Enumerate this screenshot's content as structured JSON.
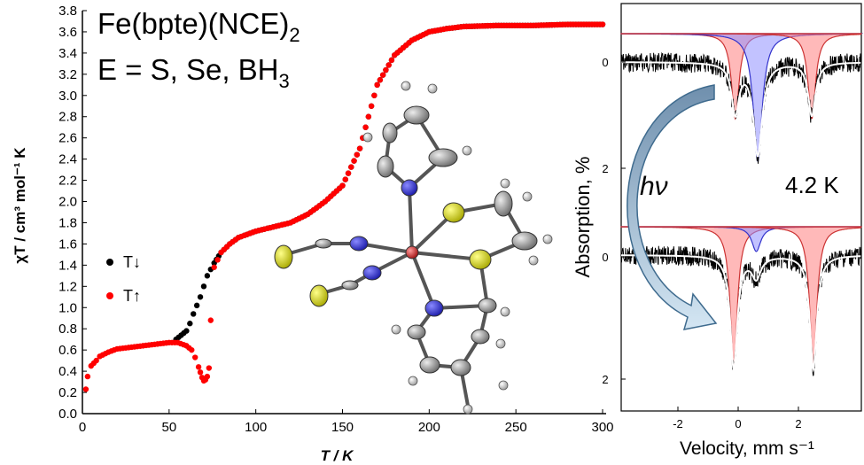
{
  "left_chart": {
    "formula_line1": "Fe(bpte)(NCE)",
    "formula_line1_sub": "2",
    "formula_line2": "E = S, Se, BH",
    "formula_line2_sub": "3",
    "ylabel": "χT / cm³ mol⁻¹ K",
    "xlabel": "T / K",
    "xticks": [
      "0",
      "50",
      "100",
      "150",
      "200",
      "250",
      "300"
    ],
    "yticks": [
      "0.0",
      "0.2",
      "0.4",
      "0.6",
      "0.8",
      "1.0",
      "1.2",
      "1.4",
      "1.6",
      "1.8",
      "2.0",
      "2.2",
      "2.4",
      "2.6",
      "2.8",
      "3.0",
      "3.2",
      "3.4",
      "3.6",
      "3.8"
    ],
    "legend": [
      "T↓",
      "T↑"
    ]
  },
  "chart_data": [
    {
      "type": "scatter",
      "xlabel": "T / K",
      "ylabel": "χT / cm³ mol⁻¹ K",
      "xlim": [
        0,
        300
      ],
      "ylim": [
        0.0,
        3.8
      ],
      "series": [
        {
          "name": "T↓",
          "color": "#000000",
          "x": [
            54,
            57,
            60,
            62,
            64,
            66,
            68,
            70,
            72,
            74,
            76,
            80,
            85,
            90,
            100,
            110,
            120,
            130,
            140,
            150,
            160,
            170,
            180,
            190,
            200,
            210,
            220,
            240,
            260,
            280,
            300
          ],
          "y": [
            0.7,
            0.74,
            0.78,
            0.85,
            0.94,
            1.02,
            1.1,
            1.2,
            1.3,
            1.36,
            1.42,
            1.52,
            1.6,
            1.66,
            1.72,
            1.76,
            1.8,
            1.88,
            2.0,
            2.15,
            2.5,
            3.1,
            3.38,
            3.52,
            3.6,
            3.63,
            3.65,
            3.66,
            3.66,
            3.67,
            3.67
          ]
        },
        {
          "name": "T↑",
          "color": "#ff0000",
          "x": [
            2,
            3,
            5,
            8,
            10,
            15,
            20,
            30,
            40,
            50,
            55,
            60,
            63,
            65,
            67,
            68,
            69,
            70,
            71,
            72,
            73,
            74,
            76,
            78,
            80,
            85,
            90,
            100,
            110,
            120,
            130,
            140,
            150,
            160,
            170,
            180,
            190,
            200,
            210,
            220,
            240,
            260,
            280,
            300
          ],
          "y": [
            0.23,
            0.35,
            0.45,
            0.5,
            0.54,
            0.58,
            0.61,
            0.63,
            0.65,
            0.67,
            0.67,
            0.64,
            0.6,
            0.53,
            0.44,
            0.39,
            0.34,
            0.31,
            0.32,
            0.35,
            0.43,
            0.88,
            1.38,
            1.45,
            1.52,
            1.6,
            1.66,
            1.72,
            1.76,
            1.8,
            1.88,
            2.0,
            2.15,
            2.5,
            3.1,
            3.38,
            3.52,
            3.6,
            3.63,
            3.65,
            3.66,
            3.66,
            3.67,
            3.67
          ]
        }
      ]
    },
    {
      "type": "line",
      "xlabel": "Velocity, mm s⁻¹",
      "ylabel": "Absorption, %",
      "xlim": [
        -4,
        4
      ],
      "xticks": [
        "-2",
        "0",
        "2"
      ],
      "top_yticks": [
        "0",
        "2"
      ],
      "bottom_yticks": [
        "0",
        "2"
      ],
      "annotation_hv": "hν",
      "annotation_temp": "4.2 K"
    }
  ]
}
